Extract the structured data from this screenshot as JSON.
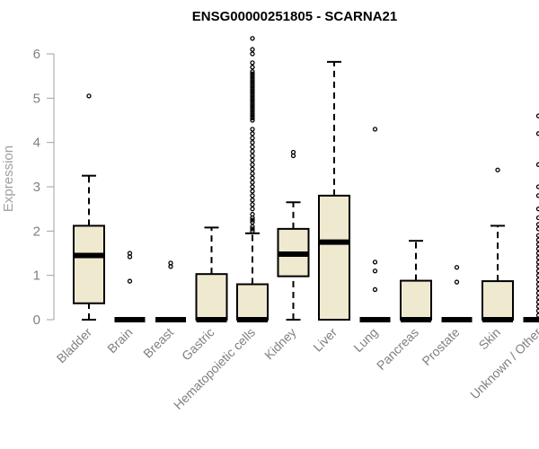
{
  "chart_data": {
    "type": "boxplot",
    "title": "ENSG00000251805 - SCARNA21",
    "xlabel": "",
    "ylabel": "Expression",
    "ylim": [
      0,
      6.3
    ],
    "yticks": [
      0,
      1,
      2,
      3,
      4,
      5,
      6
    ],
    "box_fill": "#efe9d0",
    "box_stroke": "#000000",
    "categories": [
      "Bladder",
      "Brain",
      "Breast",
      "Gastric",
      "Hematopoietic cells",
      "Kidney",
      "Liver",
      "Lung",
      "Pancreas",
      "Prostate",
      "Skin",
      "Unknown / Other"
    ],
    "boxes": [
      {
        "name": "Bladder",
        "whisker_low": 0,
        "q1": 0.37,
        "median": 1.45,
        "q3": 2.12,
        "whisker_high": 3.25,
        "outliers": [
          5.05
        ]
      },
      {
        "name": "Brain",
        "whisker_low": 0,
        "q1": 0,
        "median": 0,
        "q3": 0,
        "whisker_high": 0,
        "outliers": [
          0.87,
          1.42,
          1.5
        ]
      },
      {
        "name": "Breast",
        "whisker_low": 0,
        "q1": 0,
        "median": 0,
        "q3": 0,
        "whisker_high": 0,
        "outliers": [
          1.2,
          1.28
        ]
      },
      {
        "name": "Gastric",
        "whisker_low": 0,
        "q1": 0,
        "median": 0,
        "q3": 1.03,
        "whisker_high": 2.08,
        "outliers": []
      },
      {
        "name": "Hematopoietic cells",
        "whisker_low": 0,
        "q1": 0,
        "median": 0,
        "q3": 0.8,
        "whisker_high": 1.95,
        "outliers": [
          2.0,
          2.05,
          2.1,
          2.2,
          2.25,
          2.3,
          2.38,
          2.5,
          2.6,
          2.7,
          2.8,
          2.9,
          3.0,
          3.1,
          3.2,
          3.3,
          3.4,
          3.5,
          3.6,
          3.7,
          3.8,
          3.9,
          4.0,
          4.1,
          4.2,
          4.3,
          4.5,
          4.55,
          4.6,
          4.65,
          4.7,
          4.75,
          4.8,
          4.85,
          4.9,
          4.95,
          5.0,
          5.05,
          5.1,
          5.15,
          5.2,
          5.25,
          5.3,
          5.35,
          5.4,
          5.45,
          5.5,
          5.55,
          5.6,
          5.7,
          5.8,
          6.0,
          6.1,
          6.35
        ]
      },
      {
        "name": "Kidney",
        "whisker_low": 0,
        "q1": 0.98,
        "median": 1.48,
        "q3": 2.05,
        "whisker_high": 2.65,
        "outliers": [
          3.7,
          3.78
        ]
      },
      {
        "name": "Liver",
        "whisker_low": 0,
        "q1": 0,
        "median": 1.75,
        "q3": 2.8,
        "whisker_high": 5.82,
        "outliers": []
      },
      {
        "name": "Lung",
        "whisker_low": 0,
        "q1": 0,
        "median": 0,
        "q3": 0,
        "whisker_high": 0,
        "outliers": [
          0.68,
          1.1,
          1.3,
          4.3
        ]
      },
      {
        "name": "Pancreas",
        "whisker_low": 0,
        "q1": 0,
        "median": 0,
        "q3": 0.88,
        "whisker_high": 1.78,
        "outliers": []
      },
      {
        "name": "Prostate",
        "whisker_low": 0,
        "q1": 0,
        "median": 0,
        "q3": 0,
        "whisker_high": 0,
        "outliers": [
          0.85,
          1.18
        ]
      },
      {
        "name": "Skin",
        "whisker_low": 0,
        "q1": 0,
        "median": 0,
        "q3": 0.87,
        "whisker_high": 2.12,
        "outliers": [
          3.38
        ]
      },
      {
        "name": "Unknown / Other",
        "whisker_low": 0,
        "q1": 0,
        "median": 0,
        "q3": 0,
        "whisker_high": 0,
        "outliers": [
          0.1,
          0.2,
          0.3,
          0.4,
          0.5,
          0.6,
          0.7,
          0.8,
          0.9,
          1.0,
          1.1,
          1.2,
          1.3,
          1.4,
          1.5,
          1.6,
          1.7,
          1.8,
          1.9,
          2.05,
          2.15,
          2.3,
          2.5,
          2.8,
          3.0,
          3.5,
          4.2,
          4.6
        ]
      }
    ]
  }
}
